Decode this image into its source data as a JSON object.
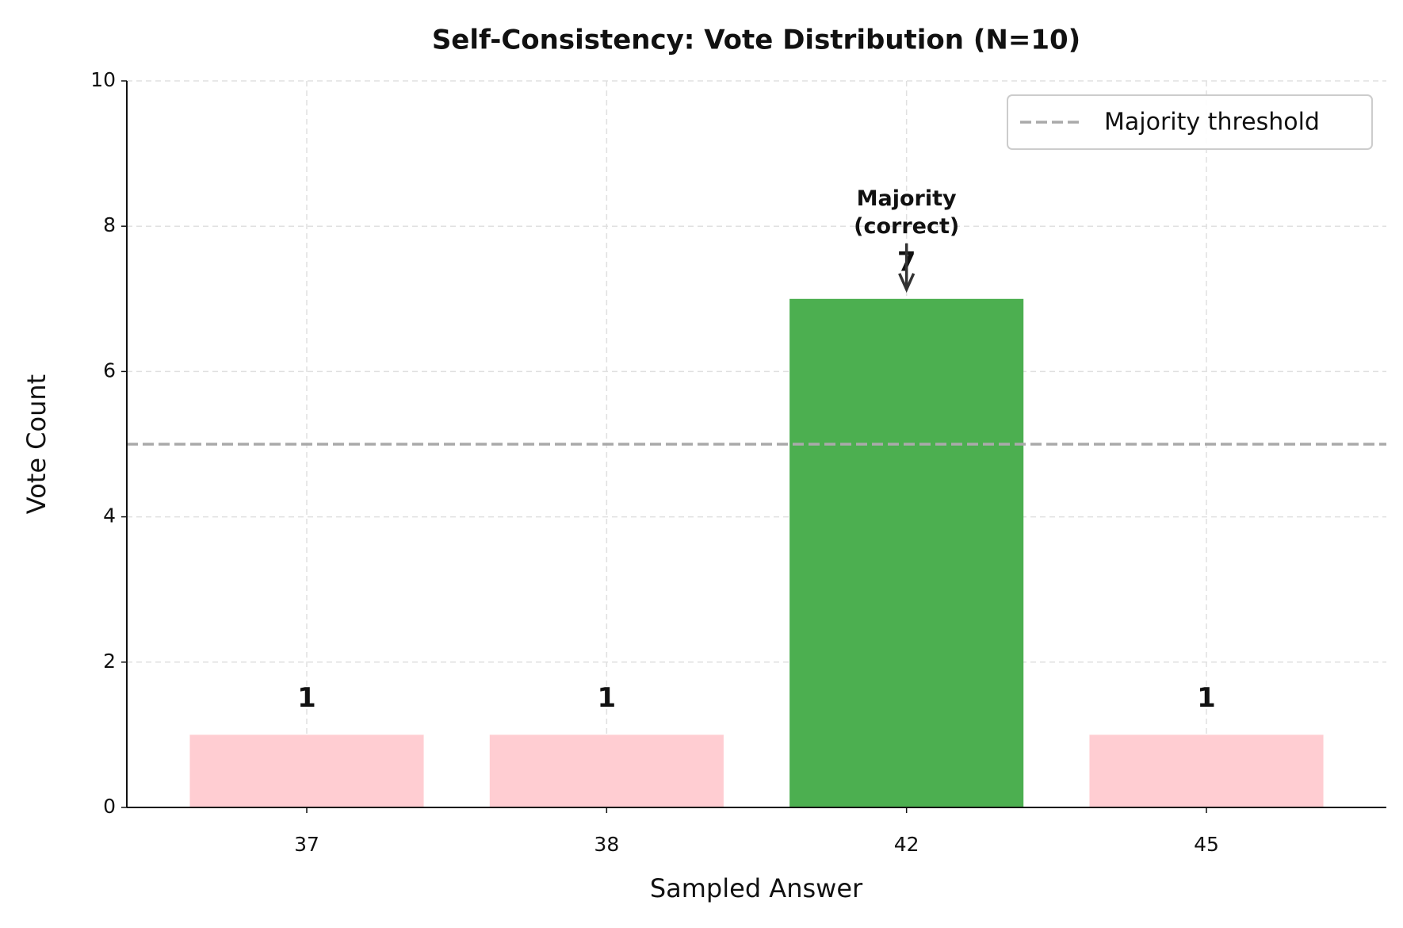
{
  "chart_data": {
    "type": "bar",
    "title": "Self-Consistency: Vote Distribution (N=10)",
    "xlabel": "Sampled Answer",
    "ylabel": "Vote Count",
    "categories": [
      "37",
      "38",
      "42",
      "45"
    ],
    "values": [
      1,
      1,
      7,
      1
    ],
    "colors": [
      "#ffcdd2",
      "#ffcdd2",
      "#4caf50",
      "#ffcdd2"
    ],
    "ylim": [
      0,
      10
    ],
    "yticks": [
      0,
      2,
      4,
      6,
      8,
      10
    ],
    "grid": true,
    "threshold": {
      "name": "Majority threshold",
      "value": 5,
      "color": "#aaaaaa"
    },
    "annotation": "Majority\n(correct)",
    "legend": "upper right"
  }
}
